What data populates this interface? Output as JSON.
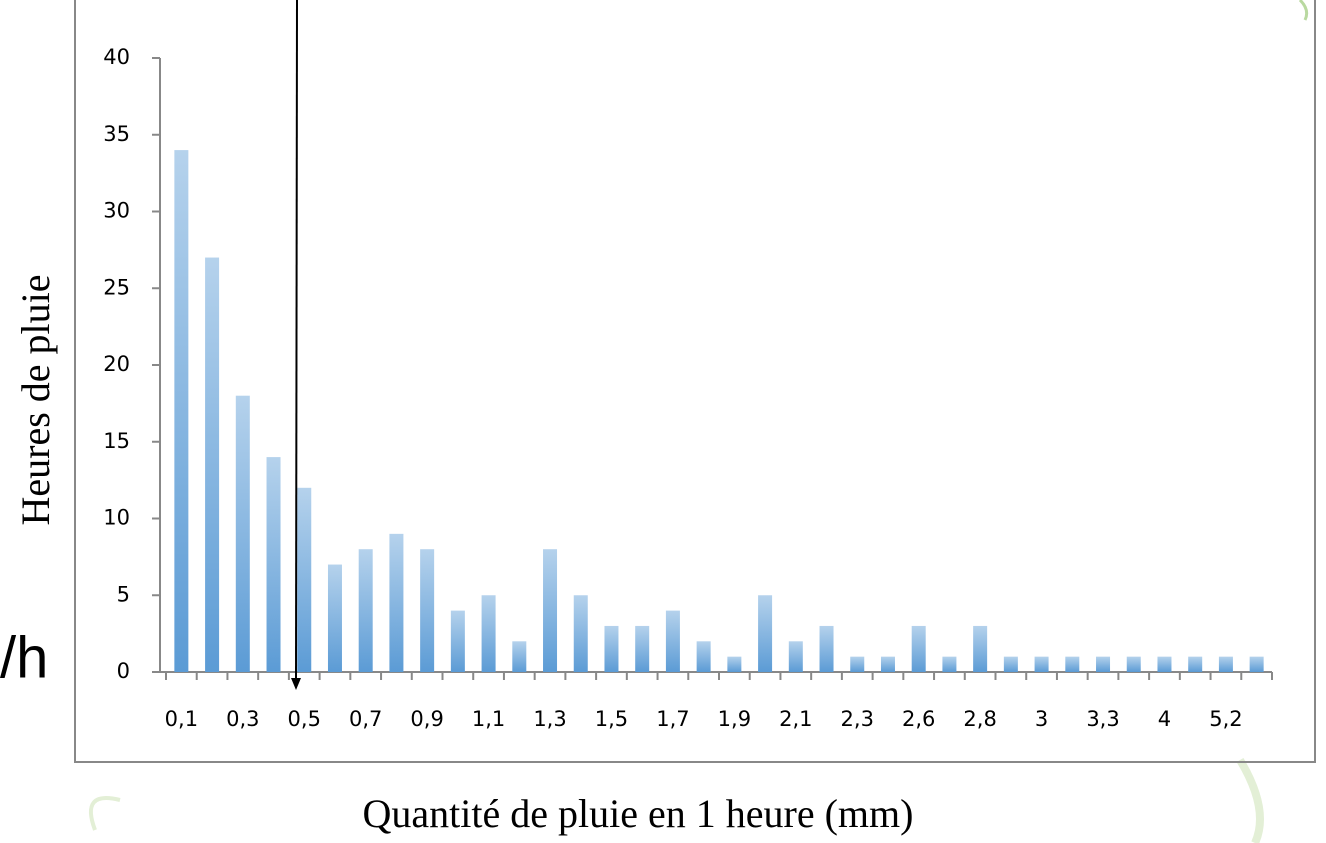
{
  "chart_data": {
    "type": "bar",
    "y_label": "Heures de pluie",
    "x_label": "Quantité de pluie en 1 heure (mm)",
    "annotation": "/h",
    "categories": [
      "0,1",
      null,
      "0,3",
      null,
      "0,5",
      null,
      "0,7",
      null,
      "0,9",
      null,
      "1,1",
      null,
      "1,3",
      null,
      "1,5",
      null,
      "1,7",
      null,
      "1,9",
      null,
      "2,1",
      null,
      "2,3",
      null,
      "2,6",
      null,
      "2,8",
      null,
      "3",
      null,
      "3,3",
      null,
      "4",
      null,
      "5,2",
      null
    ],
    "values": [
      34,
      27,
      18,
      14,
      12,
      7,
      8,
      9,
      8,
      4,
      5,
      2,
      8,
      5,
      3,
      3,
      4,
      2,
      1,
      5,
      2,
      3,
      1,
      1,
      3,
      1,
      3,
      1,
      1,
      1,
      1,
      1,
      1,
      1,
      1,
      1
    ],
    "color": "#5b9bd5",
    "ylim": [
      0,
      40
    ],
    "yticks": [
      0,
      5,
      10,
      15,
      20,
      25,
      30,
      35,
      40
    ]
  }
}
